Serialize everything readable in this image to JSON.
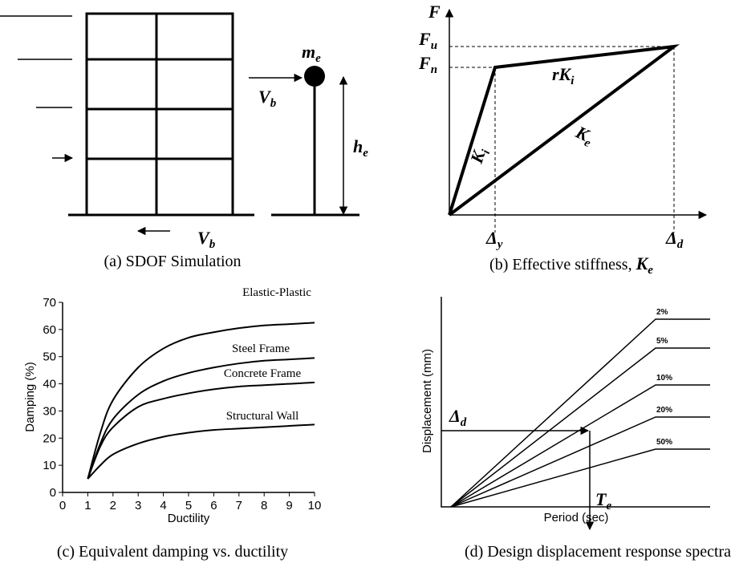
{
  "sdof": {
    "load": {
      "base": "V",
      "sub": "b"
    },
    "base_shear": {
      "base": "V",
      "sub": "b"
    },
    "mass": {
      "base": "m",
      "sub": "e"
    },
    "height": {
      "base": "h",
      "sub": "e"
    },
    "caption": "(a) SDOF Simulation"
  },
  "stiffness": {
    "axis_y": "F",
    "Fu": {
      "base": "F",
      "sub": "u"
    },
    "Fn": {
      "base": "F",
      "sub": "n"
    },
    "rKi": {
      "base": "rK",
      "sub": "i"
    },
    "Ki": {
      "base": "K",
      "sub": "i"
    },
    "Ke": {
      "base": "K",
      "sub": "e"
    },
    "dy": {
      "base": "Δ",
      "sub": "y"
    },
    "dd": {
      "base": "Δ",
      "sub": "d"
    },
    "caption": {
      "text": "(b) Effective stiffness, ",
      "base": "K",
      "sub": "e"
    }
  },
  "chart_data": {
    "type": "line",
    "caption": "(c) Equivalent damping vs. ductility",
    "xlabel": "Ductility",
    "ylabel": "Damping (%)",
    "x": [
      1,
      1.5,
      2,
      3,
      4,
      5,
      6,
      7,
      8,
      9,
      10
    ],
    "series": [
      {
        "name": "Elastic-Plastic",
        "color": "#000000",
        "values": [
          5,
          22,
          34,
          46,
          53,
          57,
          59,
          60.5,
          61.5,
          62,
          62.5
        ]
      },
      {
        "name": "Steel Frame",
        "color": "#000000",
        "values": [
          5,
          18,
          27,
          36,
          41,
          44,
          46,
          47.5,
          48.5,
          49,
          49.5
        ]
      },
      {
        "name": "Concrete Frame",
        "color": "#000000",
        "values": [
          5,
          17,
          24,
          31.5,
          34.5,
          36.5,
          38,
          39,
          39.5,
          40,
          40.5
        ]
      },
      {
        "name": "Structural Wall",
        "color": "#000000",
        "values": [
          5,
          10,
          14,
          18,
          20.5,
          22,
          23,
          23.5,
          24,
          24.5,
          25
        ]
      }
    ],
    "xlim": [
      0,
      10
    ],
    "ylim": [
      0,
      70
    ],
    "xticks": [
      0,
      1,
      2,
      3,
      4,
      5,
      6,
      7,
      8,
      9,
      10
    ],
    "yticks": [
      0,
      10,
      20,
      30,
      40,
      50,
      60,
      70
    ]
  },
  "spectra": {
    "ylabel": "Displacement (mm)",
    "xlabel": "Period (sec)",
    "levels": [
      "2%",
      "5%",
      "10%",
      "20%",
      "50%"
    ],
    "dd": {
      "base": "Δ",
      "sub": "d"
    },
    "te": {
      "base": "T",
      "sub": "e"
    },
    "caption": "(d) Design displacement response spectra"
  }
}
